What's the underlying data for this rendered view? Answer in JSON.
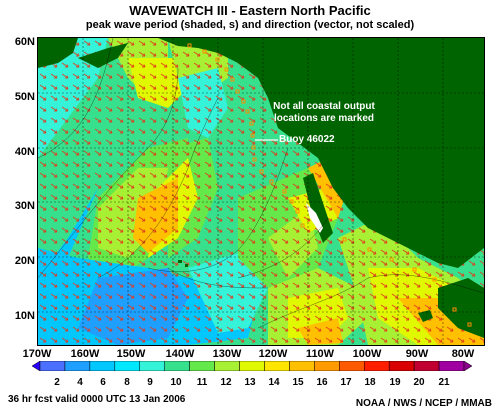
{
  "header": {
    "title": "WAVEWATCH III - Eastern North Pacific",
    "subtitle": "peak wave period (shaded, s) and direction (vector, not scaled)"
  },
  "map": {
    "latitude_labels": [
      "60N",
      "50N",
      "40N",
      "30N",
      "20N",
      "10N"
    ],
    "longitude_labels": [
      "170W",
      "160W",
      "150W",
      "140W",
      "130W",
      "120W",
      "110W",
      "100W",
      "90W",
      "80W"
    ],
    "annotation_coastal": "Not all coastal output locations are marked",
    "annotation_buoy": "Buoy 46022",
    "colors": {
      "land": "#006400",
      "buoy_marker": "#ff8c00"
    }
  },
  "colorbar": {
    "labels": [
      "2",
      "4",
      "6",
      "8",
      "9",
      "10",
      "11",
      "12",
      "13",
      "14",
      "15",
      "16",
      "17",
      "18",
      "19",
      "20",
      "21"
    ],
    "colors": [
      "#2a00ff",
      "#4b6fff",
      "#1f9fff",
      "#00c8ff",
      "#00e8ff",
      "#34f3d9",
      "#37e08c",
      "#65e84a",
      "#a7f033",
      "#e0f800",
      "#ffe600",
      "#ffc000",
      "#ff9a00",
      "#ff5a00",
      "#ff1e00",
      "#d80000",
      "#c00030",
      "#a000a0",
      "#8a008a"
    ]
  },
  "footer": {
    "forecast": "36 hr fcst valid 0000 UTC  13 Jan 2006",
    "credit": "NOAA / NWS / NCEP / MMAB"
  }
}
